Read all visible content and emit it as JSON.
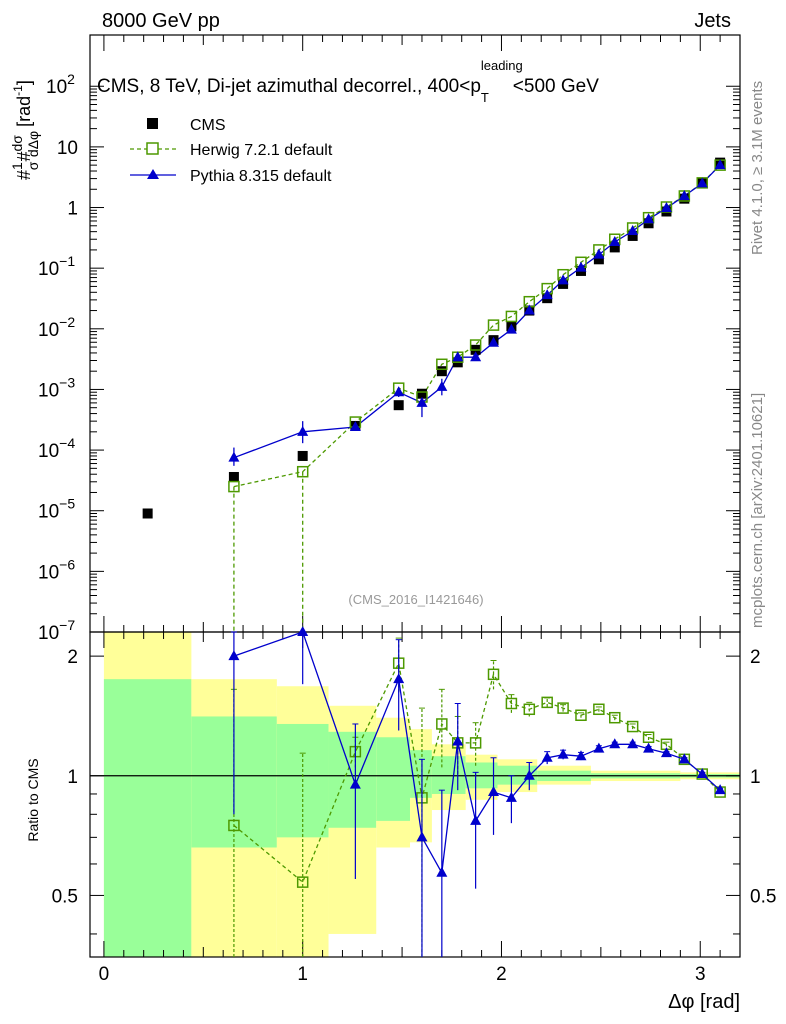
{
  "header": {
    "energy_label": "8000 GeV pp",
    "category_label": "Jets",
    "side_label_rivet": "Rivet 4.1.0, ≥ 3.1M events",
    "side_label_site": "mcplots.cern.ch [arXiv:2401.10621]",
    "watermark": "(CMS_2016_I1421646)"
  },
  "chart_data": {
    "type": "scatter",
    "title": "CMS, 8 TeV, Di-jet azimuthal decorrel., 400<p_T^leading<500 GeV",
    "title_parts": {
      "main": "CMS, 8 TeV, Di-jet azimuthal decorrel., 400<p",
      "sub": "T",
      "sup": "leading",
      "tail": "<500 GeV"
    },
    "ylabel_main": "#frac{1}{σ}#frac{dσ}{dΔφ} [rad⁻¹]",
    "ylabel_parts": {
      "p1": "#",
      "n1": "1",
      "d1": "σ",
      "p2": "#",
      "n2": "dσ",
      "d2": "dΔφ",
      "unit": "[rad",
      "unit_sup": "-1",
      "unit_close": "]"
    },
    "ylabel_ratio": "Ratio to CMS",
    "xlabel": "Δφ [rad]",
    "xlim": [
      -0.07,
      3.2
    ],
    "ylim_main": [
      1e-07,
      700
    ],
    "ylim_ratio": [
      0.35,
      2.3
    ],
    "x_ticks": [
      "0",
      "1",
      "2",
      "3"
    ],
    "y_ticks_main": [
      {
        "base": "10",
        "exp": "2"
      },
      {
        "base": "10",
        "exp": ""
      },
      {
        "base": "1",
        "exp": ""
      },
      {
        "base": "10",
        "exp": "−1"
      },
      {
        "base": "10",
        "exp": "−2"
      },
      {
        "base": "10",
        "exp": "−3"
      },
      {
        "base": "10",
        "exp": "−4"
      },
      {
        "base": "10",
        "exp": "−5"
      },
      {
        "base": "10",
        "exp": "−6"
      },
      {
        "base": "10",
        "exp": "−7"
      }
    ],
    "y_ticks_ratio": [
      "2",
      "1",
      "0.5"
    ],
    "legend": [
      {
        "name": "CMS",
        "style": "black-square"
      },
      {
        "name": "Herwig 7.2.1 default",
        "style": "green-dashed-open-square"
      },
      {
        "name": "Pythia 8.315 default",
        "style": "blue-solid-triangle"
      }
    ],
    "colors": {
      "data": "#000000",
      "herwig": "#4d9900",
      "pythia": "#0000cc",
      "band_inner": "#99ff99",
      "band_outer": "#ffff99"
    },
    "x": [
      0.22,
      0.654,
      1.0,
      1.265,
      1.483,
      1.6,
      1.7,
      1.78,
      1.87,
      1.96,
      2.05,
      2.14,
      2.23,
      2.31,
      2.4,
      2.49,
      2.57,
      2.66,
      2.74,
      2.83,
      2.92,
      3.01,
      3.1
    ],
    "series": [
      {
        "name": "CMS",
        "values": [
          9e-06,
          3.6e-05,
          8e-05,
          0.00025,
          0.00055,
          0.00085,
          0.002,
          0.0028,
          0.0045,
          0.0065,
          0.011,
          0.02,
          0.032,
          0.055,
          0.09,
          0.14,
          0.22,
          0.34,
          0.55,
          0.86,
          1.4,
          2.5,
          5.5
        ]
      },
      {
        "name": "Herwig 7.2.1 default",
        "values": [
          null,
          2.5e-05,
          4.4e-05,
          0.00029,
          0.00105,
          0.00075,
          0.0026,
          0.0034,
          0.0054,
          0.0115,
          0.016,
          0.028,
          0.046,
          0.078,
          0.125,
          0.2,
          0.3,
          0.46,
          0.68,
          1.02,
          1.55,
          2.55,
          5.0
        ]
      },
      {
        "name": "Pythia 8.315 default",
        "values": [
          null,
          7.5e-05,
          0.0002,
          0.00024,
          0.0009,
          0.0006,
          0.0011,
          0.0034,
          0.0034,
          0.0059,
          0.0097,
          0.02,
          0.036,
          0.063,
          0.102,
          0.167,
          0.27,
          0.41,
          0.64,
          0.98,
          1.55,
          2.5,
          5.0
        ]
      }
    ],
    "ratio_series": [
      {
        "name": "Herwig 7.2.1 default",
        "values": [
          null,
          0.75,
          0.54,
          1.15,
          1.92,
          0.88,
          1.35,
          1.21,
          1.21,
          1.8,
          1.52,
          1.47,
          1.53,
          1.48,
          1.42,
          1.47,
          1.4,
          1.33,
          1.25,
          1.2,
          1.1,
          1.01,
          0.91
        ],
        "err": [
          0,
          0.9,
          0.6,
          0.1,
          0.3,
          0.6,
          0.3,
          0.2,
          0.15,
          0.15,
          0.08,
          0.06,
          0.04,
          0.03,
          0.02,
          0.02,
          0.02,
          0.02,
          0.02,
          0.015,
          0.01,
          0.01,
          0.01
        ]
      },
      {
        "name": "Pythia 8.315 default",
        "values": [
          null,
          2.0,
          2.3,
          0.95,
          1.75,
          0.7,
          0.57,
          1.22,
          0.77,
          0.91,
          0.88,
          1.0,
          1.11,
          1.13,
          1.12,
          1.17,
          1.2,
          1.2,
          1.17,
          1.14,
          1.1,
          1.01,
          0.92
        ],
        "err": [
          0,
          1.2,
          0.6,
          0.4,
          0.45,
          0.4,
          0.35,
          0.3,
          0.25,
          0.2,
          0.12,
          0.08,
          0.04,
          0.03,
          0.025,
          0.02,
          0.015,
          0.015,
          0.015,
          0.01,
          0.01,
          0.01,
          0.01
        ]
      }
    ],
    "uncertainty_bands": [
      {
        "x_range": [
          0.0,
          0.44
        ],
        "inner": [
          0.25,
          1.75
        ],
        "outer": [
          0.1,
          2.3
        ]
      },
      {
        "x_range": [
          0.44,
          0.87
        ],
        "inner": [
          0.66,
          1.41
        ],
        "outer": [
          0.1,
          1.75
        ]
      },
      {
        "x_range": [
          0.87,
          1.13
        ],
        "inner": [
          0.7,
          1.35
        ],
        "outer": [
          0.35,
          1.68
        ]
      },
      {
        "x_range": [
          1.13,
          1.37
        ],
        "inner": [
          0.74,
          1.29
        ],
        "outer": [
          0.4,
          1.5
        ]
      },
      {
        "x_range": [
          1.37,
          1.54
        ],
        "inner": [
          0.77,
          1.25
        ],
        "outer": [
          0.66,
          1.4
        ]
      },
      {
        "x_range": [
          1.54,
          1.65
        ],
        "inner": [
          0.88,
          1.16
        ],
        "outer": [
          0.68,
          1.31
        ]
      },
      {
        "x_range": [
          1.65,
          1.82
        ],
        "inner": [
          0.9,
          1.12
        ],
        "outer": [
          0.82,
          1.2
        ]
      },
      {
        "x_range": [
          1.82,
          1.98
        ],
        "inner": [
          0.93,
          1.08
        ],
        "outer": [
          0.87,
          1.13
        ]
      },
      {
        "x_range": [
          1.98,
          2.18
        ],
        "inner": [
          0.95,
          1.06
        ],
        "outer": [
          0.91,
          1.1
        ]
      },
      {
        "x_range": [
          2.18,
          2.45
        ],
        "inner": [
          0.97,
          1.03
        ],
        "outer": [
          0.95,
          1.06
        ]
      },
      {
        "x_range": [
          2.45,
          2.9
        ],
        "inner": [
          0.985,
          1.015
        ],
        "outer": [
          0.97,
          1.03
        ]
      },
      {
        "x_range": [
          2.9,
          3.2
        ],
        "inner": [
          0.99,
          1.01
        ],
        "outer": [
          0.98,
          1.02
        ]
      }
    ]
  }
}
